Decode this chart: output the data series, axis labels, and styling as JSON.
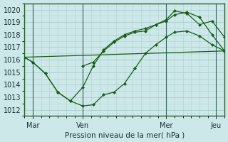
{
  "xlabel": "Pression niveau de la mer( hPa )",
  "bg_color": "#cce8e8",
  "grid_color": "#b0d0d0",
  "line_color": "#1a5c1a",
  "xlim": [
    0,
    96
  ],
  "ylim": [
    1011.5,
    1020.5
  ],
  "yticks": [
    1012,
    1013,
    1014,
    1015,
    1016,
    1017,
    1018,
    1019,
    1020
  ],
  "xtick_positions": [
    4,
    28,
    68,
    92
  ],
  "xtick_labels": [
    "Mar",
    "Ven",
    "Mer",
    "Jeu"
  ],
  "vline_positions": [
    4,
    28,
    68,
    92
  ],
  "trend_x": [
    0,
    96
  ],
  "trend_y": [
    1016.2,
    1016.7
  ],
  "line1_x": [
    0,
    4,
    10,
    16,
    22,
    28,
    33,
    38,
    43,
    48,
    53,
    58,
    63,
    68,
    72,
    78,
    84,
    90,
    96
  ],
  "line1_y": [
    1016.2,
    1015.8,
    1014.9,
    1013.4,
    1012.7,
    1012.3,
    1012.4,
    1013.2,
    1013.4,
    1014.1,
    1015.3,
    1016.5,
    1017.2,
    1017.8,
    1018.2,
    1018.3,
    1017.9,
    1017.2,
    1016.7
  ],
  "line2_x": [
    0,
    4,
    10,
    16,
    22,
    28,
    33,
    38,
    43,
    48,
    53,
    58,
    63,
    68,
    72,
    78,
    84,
    90,
    96
  ],
  "line2_y": [
    1016.2,
    1015.8,
    1014.9,
    1013.4,
    1012.7,
    1013.8,
    1015.5,
    1016.8,
    1017.5,
    1018.0,
    1018.3,
    1018.5,
    1018.8,
    1019.1,
    1019.6,
    1019.8,
    1019.4,
    1018.0,
    1016.7
  ],
  "line3_x": [
    28,
    33,
    38,
    43,
    48,
    53,
    58,
    63,
    68,
    72,
    78,
    84,
    90,
    96
  ],
  "line3_y": [
    1015.5,
    1015.8,
    1016.7,
    1017.4,
    1017.9,
    1018.2,
    1018.3,
    1018.8,
    1019.2,
    1019.9,
    1019.7,
    1018.8,
    1019.1,
    1017.8
  ]
}
